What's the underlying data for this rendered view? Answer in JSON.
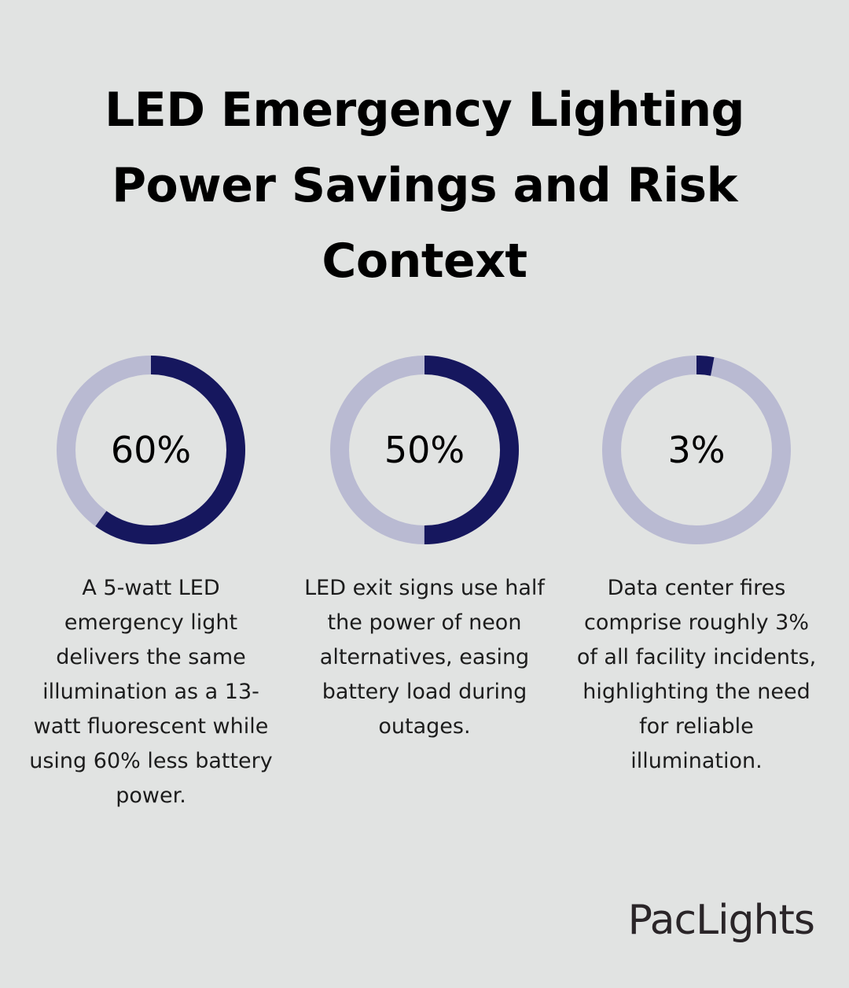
{
  "title": "LED Emergency Lighting Power Savings and Risk Context",
  "colors": {
    "background": "#e1e3e2",
    "filled": "#16175e",
    "track": "#b9bad2"
  },
  "chart_data": [
    {
      "type": "pie",
      "style": "donut",
      "value": 60,
      "max": 100,
      "label": "60%",
      "description": "A 5-watt LED emergency light delivers the same illumination as a 13-watt fluorescent while using 60% less battery power."
    },
    {
      "type": "pie",
      "style": "donut",
      "value": 50,
      "max": 100,
      "label": "50%",
      "description": "LED exit signs use half the power of neon alternatives, easing battery load during outages."
    },
    {
      "type": "pie",
      "style": "donut",
      "value": 3,
      "max": 100,
      "label": "3%",
      "description": "Data center fires comprise roughly 3% of all facility incidents, highlighting the need for reliable illumination."
    }
  ],
  "logo": "PacLights"
}
